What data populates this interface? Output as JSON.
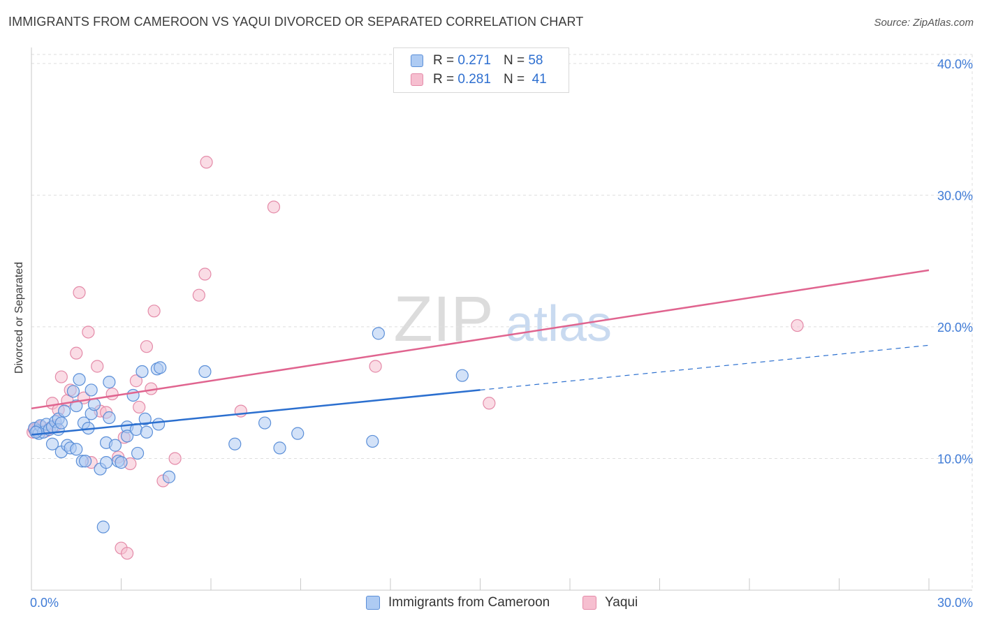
{
  "header": {
    "title": "IMMIGRANTS FROM CAMEROON VS YAQUI DIVORCED OR SEPARATED CORRELATION CHART",
    "source": "Source: ZipAtlas.com"
  },
  "watermark": {
    "zip": "ZIP",
    "atlas": "atlas"
  },
  "legend_top": {
    "rows": [
      {
        "r_label": "R =",
        "r_value": "0.271",
        "n_label": "N =",
        "n_value": "58"
      },
      {
        "r_label": "R =",
        "r_value": "0.281",
        "n_label": "N =",
        "n_value": "41"
      }
    ]
  },
  "chart_data": {
    "type": "scatter",
    "title": "IMMIGRANTS FROM CAMEROON VS YAQUI DIVORCED OR SEPARATED CORRELATION CHART",
    "xlabel": "",
    "ylabel": "Divorced or Separated",
    "xlim": [
      0,
      30
    ],
    "ylim": [
      0,
      41
    ],
    "x_tick_labels": [
      "0.0%",
      "30.0%"
    ],
    "y_ticks": [
      10,
      20,
      30,
      40
    ],
    "y_tick_labels": [
      "10.0%",
      "20.0%",
      "30.0%",
      "40.0%"
    ],
    "grid": true,
    "colors": {
      "cameroon_fill": "#aecbf3",
      "cameroon_stroke": "#5b8fd8",
      "cameroon_line": "#2b6fcf",
      "yaqui_fill": "#f6bfd0",
      "yaqui_stroke": "#e48aa8",
      "yaqui_line": "#e0648f",
      "axis_text": "#3f7bd6"
    },
    "series": [
      {
        "name": "Immigrants from Cameroon",
        "R": 0.271,
        "N": 58,
        "trend": {
          "x0": 0,
          "y0": 11.8,
          "x_solid_end": 15.0,
          "x1": 30,
          "y1": 18.6
        },
        "points": [
          [
            0.1,
            12.3
          ],
          [
            0.2,
            12.1
          ],
          [
            0.25,
            11.9
          ],
          [
            0.3,
            12.5
          ],
          [
            0.4,
            12.0
          ],
          [
            0.5,
            12.6
          ],
          [
            0.6,
            12.2
          ],
          [
            0.7,
            12.4
          ],
          [
            0.7,
            11.1
          ],
          [
            0.8,
            12.8
          ],
          [
            0.9,
            13.0
          ],
          [
            0.9,
            12.2
          ],
          [
            1.0,
            12.7
          ],
          [
            1.0,
            10.5
          ],
          [
            1.1,
            13.6
          ],
          [
            1.2,
            11.0
          ],
          [
            1.3,
            10.8
          ],
          [
            1.4,
            15.1
          ],
          [
            1.5,
            10.7
          ],
          [
            1.5,
            14.0
          ],
          [
            1.6,
            16.0
          ],
          [
            1.7,
            9.8
          ],
          [
            1.75,
            12.7
          ],
          [
            1.8,
            9.8
          ],
          [
            1.9,
            12.3
          ],
          [
            2.0,
            13.4
          ],
          [
            2.0,
            15.2
          ],
          [
            2.1,
            14.1
          ],
          [
            2.3,
            9.2
          ],
          [
            2.4,
            4.8
          ],
          [
            2.5,
            11.2
          ],
          [
            2.5,
            9.7
          ],
          [
            2.6,
            13.1
          ],
          [
            2.6,
            15.8
          ],
          [
            2.8,
            11.0
          ],
          [
            2.9,
            9.8
          ],
          [
            3.0,
            9.7
          ],
          [
            3.2,
            12.4
          ],
          [
            3.2,
            11.7
          ],
          [
            3.4,
            14.8
          ],
          [
            3.5,
            12.2
          ],
          [
            3.55,
            10.4
          ],
          [
            3.7,
            16.6
          ],
          [
            3.8,
            13.0
          ],
          [
            3.85,
            12.0
          ],
          [
            4.2,
            16.8
          ],
          [
            4.25,
            12.6
          ],
          [
            4.3,
            16.9
          ],
          [
            4.6,
            8.6
          ],
          [
            5.8,
            16.6
          ],
          [
            6.8,
            11.1
          ],
          [
            7.8,
            12.7
          ],
          [
            8.3,
            10.8
          ],
          [
            8.9,
            11.9
          ],
          [
            11.4,
            11.3
          ],
          [
            11.6,
            19.5
          ],
          [
            14.4,
            16.3
          ],
          [
            0.15,
            12.0
          ]
        ]
      },
      {
        "name": "Yaqui",
        "R": 0.281,
        "N": 41,
        "trend": {
          "x0": 0,
          "y0": 13.8,
          "x1": 30,
          "y1": 24.3
        },
        "points": [
          [
            0.05,
            12.0
          ],
          [
            0.1,
            12.2
          ],
          [
            0.2,
            12.3
          ],
          [
            0.3,
            12.4
          ],
          [
            0.5,
            12.1
          ],
          [
            0.6,
            12.3
          ],
          [
            0.7,
            14.2
          ],
          [
            0.8,
            12.5
          ],
          [
            1.0,
            16.2
          ],
          [
            1.2,
            14.4
          ],
          [
            1.3,
            15.2
          ],
          [
            1.5,
            18.0
          ],
          [
            1.6,
            22.6
          ],
          [
            1.75,
            14.6
          ],
          [
            1.9,
            19.6
          ],
          [
            2.0,
            9.7
          ],
          [
            2.2,
            17.0
          ],
          [
            2.3,
            13.6
          ],
          [
            2.5,
            13.5
          ],
          [
            2.7,
            14.9
          ],
          [
            2.9,
            10.1
          ],
          [
            3.0,
            3.2
          ],
          [
            3.1,
            11.6
          ],
          [
            3.2,
            2.8
          ],
          [
            3.3,
            9.6
          ],
          [
            3.5,
            15.9
          ],
          [
            3.6,
            13.9
          ],
          [
            3.85,
            18.5
          ],
          [
            4.0,
            15.3
          ],
          [
            4.1,
            21.2
          ],
          [
            4.4,
            8.3
          ],
          [
            4.8,
            10.0
          ],
          [
            5.6,
            22.4
          ],
          [
            5.8,
            24.0
          ],
          [
            5.85,
            32.5
          ],
          [
            7.0,
            13.6
          ],
          [
            8.1,
            29.1
          ],
          [
            11.5,
            17.0
          ],
          [
            15.3,
            14.2
          ],
          [
            25.6,
            20.1
          ],
          [
            0.9,
            13.7
          ]
        ]
      }
    ]
  },
  "legend_bottom": {
    "items": [
      {
        "label": "Immigrants from Cameroon"
      },
      {
        "label": "Yaqui"
      }
    ]
  }
}
